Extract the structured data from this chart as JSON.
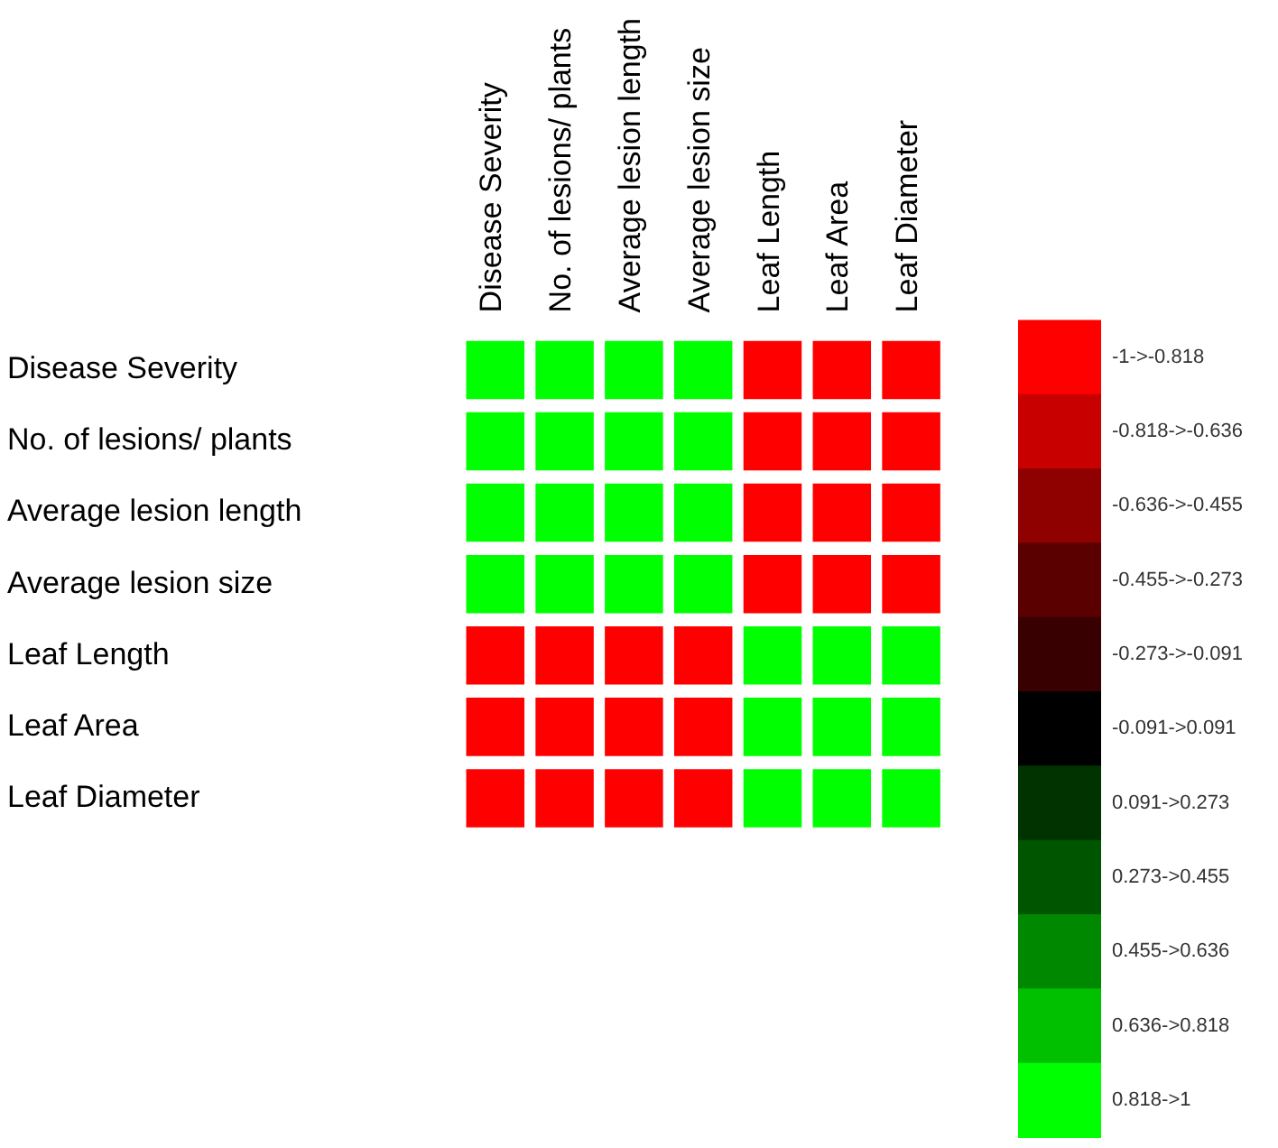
{
  "chart_data": {
    "type": "heatmap",
    "categories": [
      "Disease Severity",
      "No. of lesions/ plants",
      "Average lesion length",
      "Average lesion size",
      "Leaf Length",
      "Leaf Area",
      "Leaf Diameter"
    ],
    "y_categories": [
      "Disease Severity",
      "No. of lesions/ plants",
      "Average lesion length",
      "Average lesion size",
      "Leaf Length",
      "Leaf Area",
      "Leaf Diameter"
    ],
    "cells": [
      [
        1,
        0.9,
        0.9,
        0.9,
        -0.9,
        -0.9,
        -0.9
      ],
      [
        0.9,
        1,
        0.9,
        0.9,
        -0.9,
        -0.9,
        -0.9
      ],
      [
        0.9,
        0.9,
        1,
        0.9,
        -0.9,
        -0.9,
        -0.9
      ],
      [
        0.9,
        0.9,
        0.9,
        1,
        -0.9,
        -0.9,
        -0.9
      ],
      [
        -0.9,
        -0.9,
        -0.9,
        -0.9,
        1,
        0.9,
        0.9
      ],
      [
        -0.9,
        -0.9,
        -0.9,
        -0.9,
        0.9,
        1,
        0.9
      ],
      [
        -0.9,
        -0.9,
        -0.9,
        -0.9,
        0.9,
        0.9,
        1
      ]
    ],
    "clim": [
      -1,
      1
    ],
    "cticks": [
      {
        "value": -0.909,
        "label": "-1->-0.818"
      },
      {
        "value": -0.727,
        "label": "-0.818->-0.636"
      },
      {
        "value": -0.545,
        "label": "-0.636->-0.455"
      },
      {
        "value": -0.364,
        "label": "-0.455->-0.273"
      },
      {
        "value": -0.182,
        "label": "-0.273->-0.091"
      },
      {
        "value": 0,
        "label": "-0.091->0.091"
      },
      {
        "value": 0.182,
        "label": "0.091->0.273"
      },
      {
        "value": 0.364,
        "label": "0.273->0.455"
      },
      {
        "value": 0.545,
        "label": "0.455->0.636"
      },
      {
        "value": 0.727,
        "label": "0.636->0.818"
      },
      {
        "value": 0.909,
        "label": "0.818->1"
      }
    ],
    "colors": [
      "#ff0000",
      "#c80000",
      "#8f0000",
      "#5a0000",
      "#380000",
      "#000000",
      "#003300",
      "#005500",
      "#008800",
      "#00c000",
      "#00ff00"
    ]
  }
}
